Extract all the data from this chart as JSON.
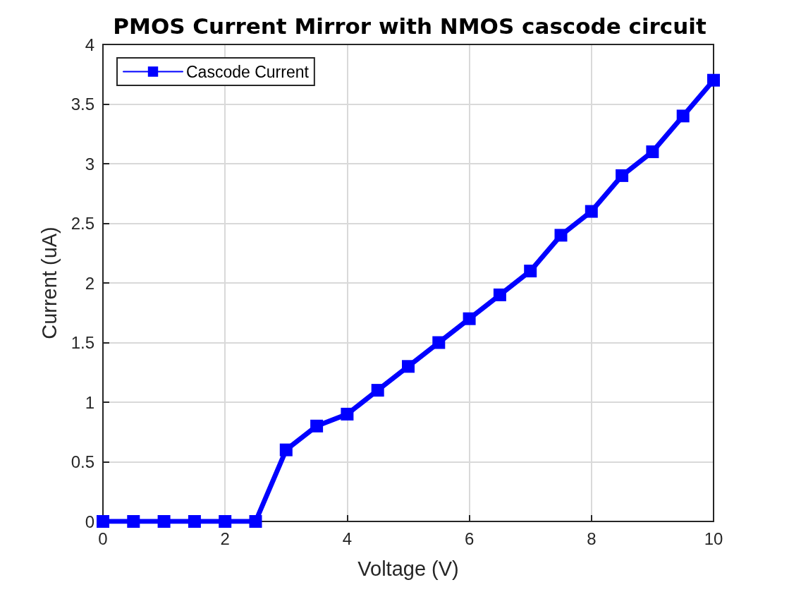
{
  "chart_data": {
    "type": "line",
    "title": "PMOS Current Mirror with NMOS cascode circuit",
    "xlabel": "Voltage (V)",
    "ylabel": "Current (uA)",
    "x": [
      0,
      0.5,
      1,
      1.5,
      2,
      2.5,
      3,
      3.5,
      4,
      4.5,
      5,
      5.5,
      6,
      6.5,
      7,
      7.5,
      8,
      8.5,
      9,
      9.5,
      10
    ],
    "series": [
      {
        "name": "Cascode Current",
        "color": "#0000ff",
        "values": [
          0,
          0,
          0,
          0,
          0,
          0,
          0.6,
          0.8,
          0.9,
          1.1,
          1.3,
          1.5,
          1.7,
          1.9,
          2.1,
          2.4,
          2.6,
          2.9,
          3.1,
          3.4,
          3.7
        ]
      }
    ],
    "xlim": [
      0,
      10
    ],
    "ylim": [
      0,
      4
    ],
    "xticks": [
      0,
      2,
      4,
      6,
      8,
      10
    ],
    "yticks": [
      0,
      0.5,
      1,
      1.5,
      2,
      2.5,
      3,
      3.5,
      4
    ],
    "grid": true,
    "legend": "top left",
    "marker": "square",
    "line_style": "solid"
  }
}
